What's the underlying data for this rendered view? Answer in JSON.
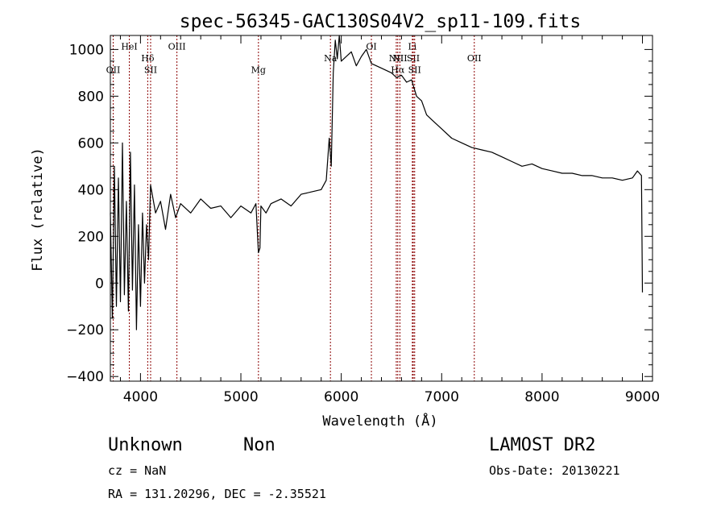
{
  "chart_data": {
    "type": "line",
    "title": "spec-56345-GAC130S04V2_sp11-109.fits",
    "xlabel": "Wavelength (Å)",
    "ylabel": "Flux (relative)",
    "xlim": [
      3700,
      9100
    ],
    "ylim": [
      -420,
      1060
    ],
    "xticks": [
      4000,
      5000,
      6000,
      7000,
      8000,
      9000
    ],
    "yticks": [
      -400,
      -200,
      0,
      200,
      400,
      600,
      800,
      1000
    ],
    "line_color": "#000000",
    "marker_color": "#8b0000",
    "grid": false,
    "series": [
      {
        "x": [
          3700,
          3720,
          3740,
          3760,
          3780,
          3800,
          3820,
          3840,
          3860,
          3880,
          3900,
          3920,
          3940,
          3960,
          3980,
          4000,
          4020,
          4040,
          4060,
          4080,
          4100,
          4150,
          4200,
          4250,
          4300,
          4350,
          4400,
          4500,
          4600,
          4700,
          4800,
          4900,
          5000,
          5100,
          5150,
          5175,
          5190,
          5200,
          5250,
          5300,
          5400,
          5500,
          5600,
          5700,
          5800,
          5850,
          5880,
          5900,
          5920,
          5940,
          5960,
          5980,
          6000,
          6050,
          6100,
          6150,
          6200,
          6250,
          6300,
          6400,
          6500,
          6550,
          6600,
          6650,
          6700,
          6750,
          6800,
          6850,
          6900,
          7000,
          7100,
          7200,
          7300,
          7400,
          7500,
          7600,
          7700,
          7800,
          7900,
          8000,
          8100,
          8200,
          8300,
          8400,
          8500,
          8600,
          8700,
          8800,
          8900,
          8950,
          8990,
          9000
        ],
        "y": [
          300,
          -150,
          500,
          -100,
          450,
          -80,
          600,
          -50,
          350,
          -120,
          560,
          -30,
          420,
          -200,
          250,
          -100,
          300,
          0,
          250,
          100,
          420,
          300,
          350,
          230,
          380,
          280,
          340,
          300,
          360,
          320,
          330,
          280,
          330,
          300,
          340,
          130,
          150,
          330,
          300,
          340,
          360,
          330,
          380,
          390,
          400,
          440,
          620,
          500,
          900,
          1040,
          960,
          1060,
          950,
          970,
          990,
          930,
          970,
          1000,
          940,
          920,
          900,
          880,
          890,
          860,
          870,
          800,
          780,
          720,
          700,
          660,
          620,
          600,
          580,
          570,
          560,
          540,
          520,
          500,
          510,
          490,
          480,
          470,
          470,
          460,
          460,
          450,
          450,
          440,
          450,
          480,
          460,
          -40
        ]
      }
    ],
    "line_markers": [
      {
        "label": "OII",
        "x": 3728,
        "label_y": 900
      },
      {
        "label": "HeI",
        "x": 3889,
        "label_y": 1000
      },
      {
        "label": "Hδ",
        "x": 4072,
        "label_y": 950
      },
      {
        "label": "SII",
        "x": 4101,
        "label_y": 900
      },
      {
        "label": "OIII",
        "x": 4363,
        "label_y": 1000
      },
      {
        "label": "Mg",
        "x": 5175,
        "label_y": 900
      },
      {
        "label": "Na",
        "x": 5892,
        "label_y": 950
      },
      {
        "label": "OI",
        "x": 6300,
        "label_y": 1000
      },
      {
        "label": "NII",
        "x": 6548,
        "label_y": 950
      },
      {
        "label": "Hα",
        "x": 6563,
        "label_y": 900
      },
      {
        "label": "NII",
        "x": 6584,
        "label_y": 950
      },
      {
        "label": "Li",
        "x": 6708,
        "label_y": 1000
      },
      {
        "label": "SII",
        "x": 6717,
        "label_y": 950
      },
      {
        "label": "SII",
        "x": 6731,
        "label_y": 900
      },
      {
        "label": "OII",
        "x": 7325,
        "label_y": 950
      }
    ]
  },
  "footer": {
    "classification": "Unknown",
    "subclass": "Non",
    "survey": "LAMOST DR2",
    "cz": "cz = NaN",
    "obs_date": "Obs-Date: 20130221",
    "coords": "RA = 131.20296, DEC =  -2.35521"
  }
}
